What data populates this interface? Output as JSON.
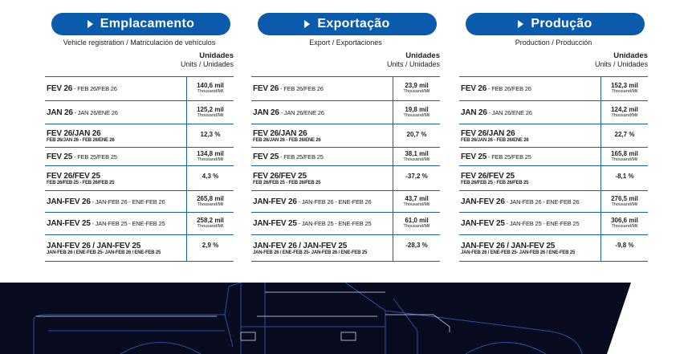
{
  "colors": {
    "accent": "#0a5bab",
    "divider": "#1e5fa8",
    "banner": "#080a1e"
  },
  "sections": [
    {
      "title": "Emplacamento",
      "subtitle": "Vehicle registration / Matriculación de vehículos",
      "units_title": "Unidades",
      "units_sub": "Units / Unidades",
      "values": [
        [
          "140,6 mil",
          "Thousand/Mil"
        ],
        [
          "125,2 mil",
          "Thousand/Mil"
        ],
        [
          "12,3 %",
          ""
        ],
        [
          "134,8 mil",
          "Thousand/Mil"
        ],
        [
          "4,3 %",
          ""
        ],
        [
          "265,8 mil",
          "Thousand/Mil"
        ],
        [
          "258,2 mil",
          "Thousand/Mil"
        ],
        [
          "2,9 %",
          ""
        ]
      ]
    },
    {
      "title": "Exportação",
      "subtitle": "Export / Exportaciones",
      "units_title": "Unidades",
      "units_sub": "Units / Unidades",
      "values": [
        [
          "23,9 mil",
          "Thousand/Mil"
        ],
        [
          "19,8 mil",
          "Thousand/Mil"
        ],
        [
          "20,7 %",
          ""
        ],
        [
          "38,1 mil",
          "Thousand/Mil"
        ],
        [
          "-37,2 %",
          ""
        ],
        [
          "43,7 mil",
          "Thousand/Mil"
        ],
        [
          "61,0 mil",
          "Thousand/Mil"
        ],
        [
          "-28,3 %",
          ""
        ]
      ]
    },
    {
      "title": "Produção",
      "subtitle": "Production / Producción",
      "units_title": "Unidades",
      "units_sub": "Units / Unidades",
      "values": [
        [
          "152,3 mil",
          "Thousand/Mil"
        ],
        [
          "124,2 mil",
          "Thousand/Mil"
        ],
        [
          "22,7 %",
          ""
        ],
        [
          "165,8 mil",
          "Thousand/Mil"
        ],
        [
          "-8,1 %",
          ""
        ],
        [
          "276,5 mil",
          "Thousand/Mil"
        ],
        [
          "306,6 mil",
          "Thousand/Mil"
        ],
        [
          "-9,8 %",
          ""
        ]
      ]
    }
  ],
  "rows": [
    {
      "main": "FEV 26",
      "inline": " - FEB 26/FEB 26",
      "small": ""
    },
    {
      "main": "JAN 26",
      "inline": " - JAN 26/ENE 26",
      "small": ""
    },
    {
      "main": "FEV 26/JAN 26",
      "inline": "",
      "small": "FEB 26/JAN 26 - FEB 26/ENE 26"
    },
    {
      "main": "FEV 25",
      "inline": " - FEB 25/FEB 25",
      "small": ""
    },
    {
      "main": "FEV 26/FEV 25",
      "inline": "",
      "small": "FEB 26/FEB 25 - FEB 26/FEB 25"
    },
    {
      "main": "JAN-FEV 26",
      "inline": " - JAN-FEB 26 - ENE-FEB 26",
      "small": ""
    },
    {
      "main": "JAN-FEV 25",
      "inline": " - JAN-FEB 25 - ENE-FEB 25",
      "small": ""
    },
    {
      "main": "JAN-FEV 26 / JAN-FEV 25",
      "inline": "",
      "small": "JAN-FEB 26 / ENE-FEB 25- JAN-FEB 26 / ENE-FEB 25"
    }
  ]
}
